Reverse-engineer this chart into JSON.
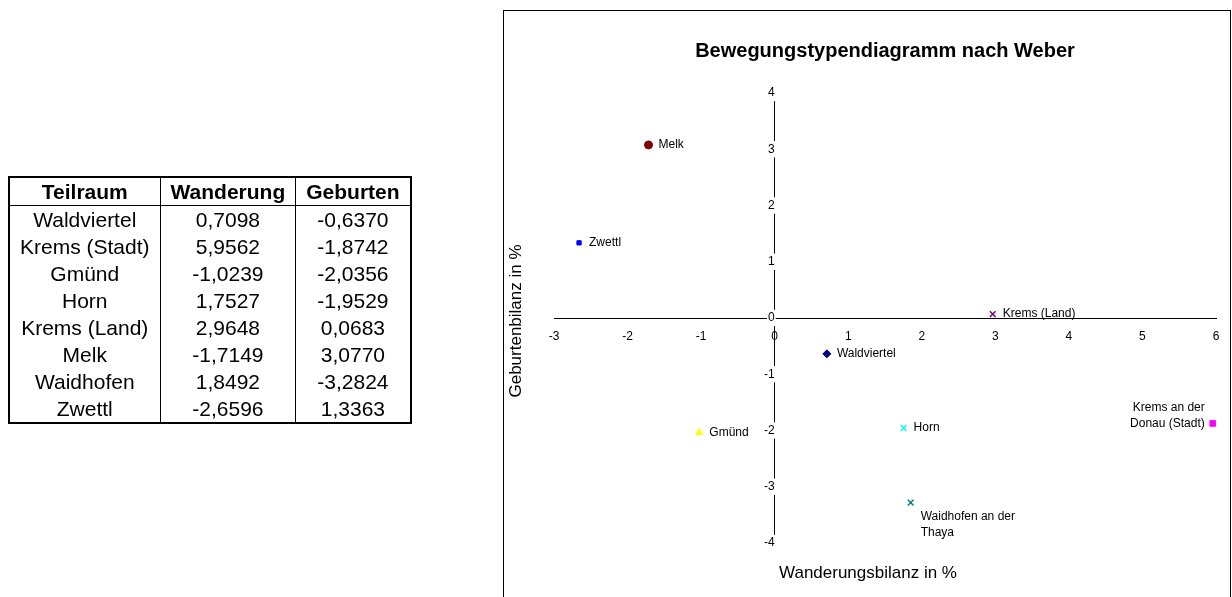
{
  "chart_data": [
    {
      "type": "other",
      "categories": [
        "Teilraum",
        "Wanderung",
        "Geburten"
      ],
      "annotations": [
        "Waldviertel",
        "0,7098",
        "-0,6370",
        "Krems (Stadt)",
        "5,9562",
        "-1,8742",
        "Gmünd",
        "-1,0239",
        "-2,0356",
        "Horn",
        "1,7527",
        "-1,9529",
        "Krems (Land)",
        "2,9648",
        "0,0683",
        "Melk",
        "-1,7149",
        "3,0770",
        "Waidhofen",
        "1,8492",
        "-3,2824",
        "Zwettl",
        "-2,6596",
        "1,3363"
      ]
    },
    {
      "type": "scatter",
      "title": "Bewegungstypendiagramm nach Weber",
      "xlabel": "Wanderungsbilanz in %",
      "ylabel": "Geburtenbilanz in %",
      "legend": false,
      "grid": false,
      "xlim": [
        -3,
        6
      ],
      "xticks": [
        -3,
        -2,
        -1,
        0,
        1,
        2,
        3,
        4,
        5,
        6
      ],
      "ylim": [
        -4,
        4
      ],
      "yticks": [
        -4,
        -3,
        -2,
        -1,
        0,
        1,
        2,
        3,
        4
      ],
      "series": [
        {
          "name": "Waldviertel",
          "color": "#000080",
          "marker": "diamond",
          "x": [
            0.7098
          ],
          "values": [
            -0.637
          ]
        },
        {
          "name": "Krems an der Donau (Stadt)",
          "color": "#ff00ff",
          "marker": "square",
          "x": [
            5.9562
          ],
          "values": [
            -1.8742
          ]
        },
        {
          "name": "Gmünd",
          "color": "#ffff00",
          "marker": "triangle",
          "x": [
            -1.0239
          ],
          "values": [
            -2.0356
          ]
        },
        {
          "name": "Horn",
          "color": "#00ffff",
          "marker": "cross",
          "x": [
            1.7527
          ],
          "values": [
            -1.9529
          ]
        },
        {
          "name": "Krems (Land)",
          "color": "#800080",
          "marker": "cross",
          "x": [
            2.9648
          ],
          "values": [
            0.0683
          ]
        },
        {
          "name": "Melk",
          "color": "#800000",
          "marker": "circle",
          "x": [
            -1.7149
          ],
          "values": [
            3.077
          ]
        },
        {
          "name": "Waidhofen an der Thaya",
          "color": "#008080",
          "marker": "cross",
          "x": [
            1.8492
          ],
          "values": [
            -3.2824
          ]
        },
        {
          "name": "Zwettl",
          "color": "#0000ff",
          "marker": "square",
          "x": [
            -2.6596
          ],
          "values": [
            1.3363
          ]
        }
      ]
    }
  ]
}
